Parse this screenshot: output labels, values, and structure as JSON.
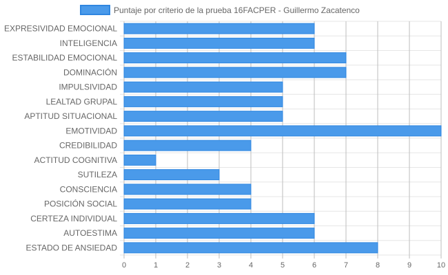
{
  "chart_data": {
    "type": "bar",
    "orientation": "horizontal",
    "categories": [
      "EXPRESIVIDAD EMOCIONAL",
      "INTELIGENCIA",
      "ESTABILIDAD EMOCIONAL",
      "DOMINACIÓN",
      "IMPULSIVIDAD",
      "LEALTAD GRUPAL",
      "APTITUD SITUACIONAL",
      "EMOTIVIDAD",
      "CREDIBILIDAD",
      "ACTITUD COGNITIVA",
      "SUTILEZA",
      "CONSCIENCIA",
      "POSICIÓN SOCIAL",
      "CERTEZA INDIVIDUAL",
      "AUTOESTIMA",
      "ESTADO DE ANSIEDAD"
    ],
    "series": [
      {
        "name": "Puntaje por criterio de la prueba 16FACPER - Guillermo Zacatenco",
        "values": [
          6,
          6,
          7,
          7,
          5,
          5,
          5,
          10,
          4,
          1,
          3,
          4,
          4,
          6,
          6,
          8
        ],
        "color": "#4a9aea",
        "border_color": "#2f86e0"
      }
    ],
    "xlim": [
      0,
      10
    ],
    "xticks": [
      0,
      1,
      2,
      3,
      4,
      5,
      6,
      7,
      8,
      9,
      10
    ],
    "legend_position": "top-center",
    "grid": true,
    "colors": {
      "bar": "#4a9aea",
      "bar_border": "#2f86e0",
      "grid": "#e6e6e6",
      "grid_vertical": "#bdbdbd",
      "text": "#666666"
    }
  }
}
